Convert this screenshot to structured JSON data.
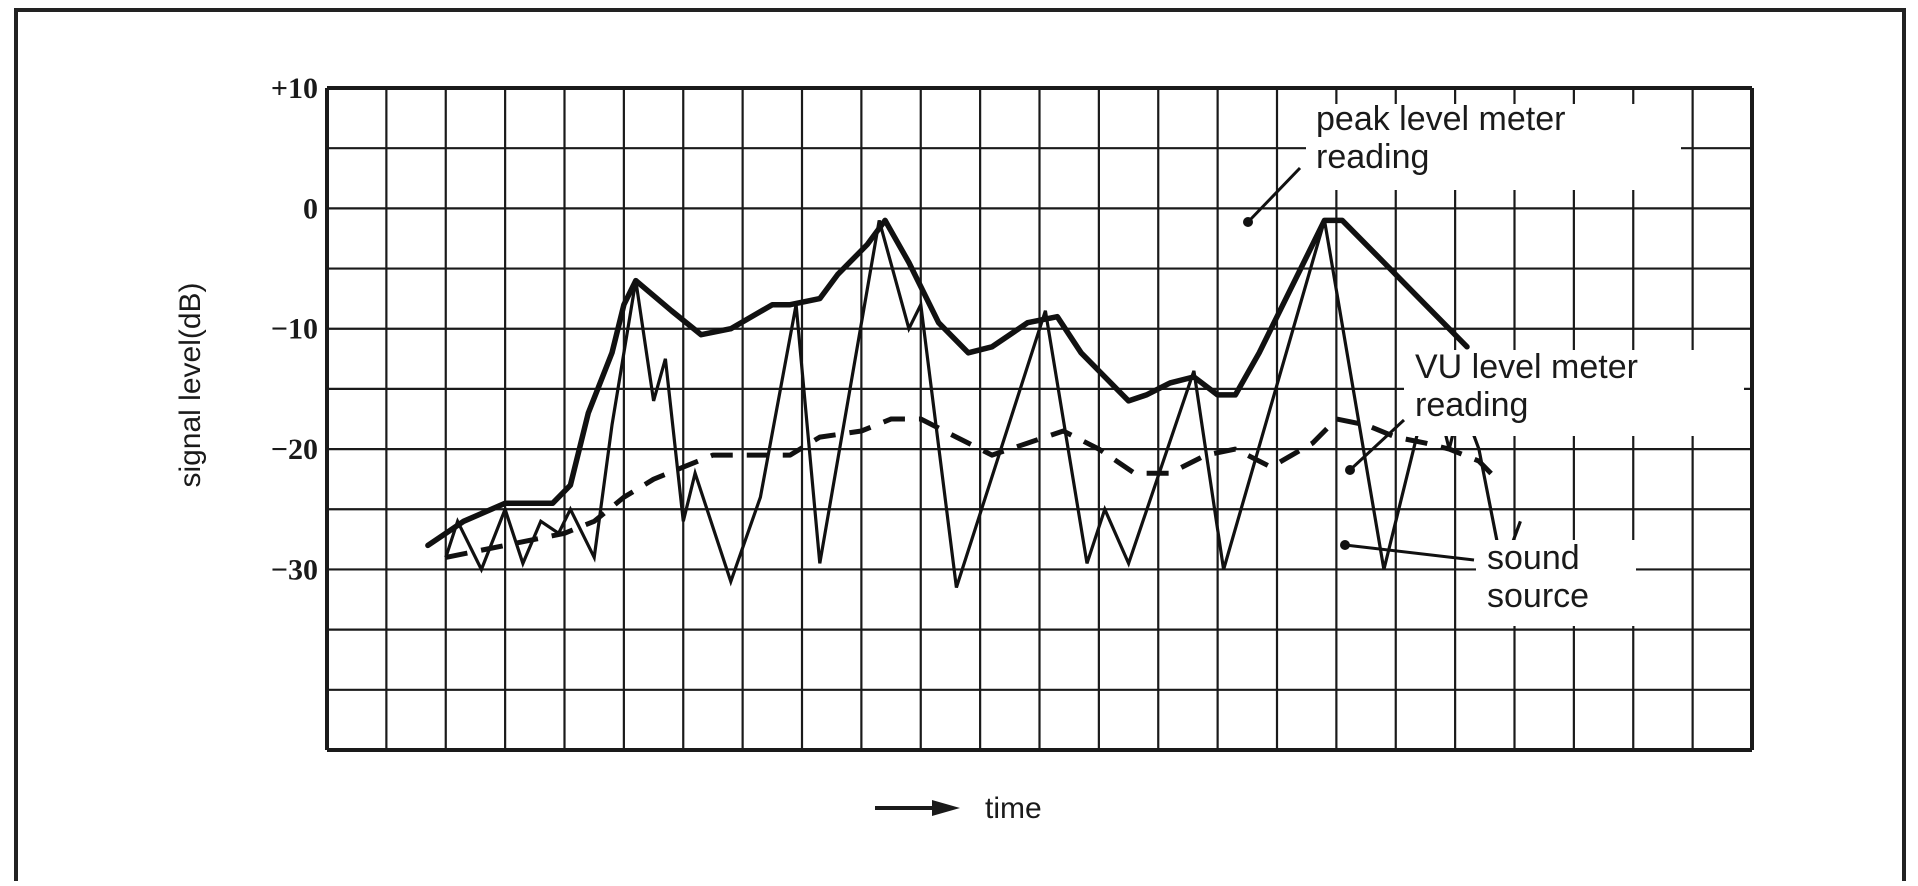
{
  "chart_data": {
    "type": "line",
    "title": "",
    "xlabel": "time",
    "ylabel": "signal level(dB)",
    "ylim": [
      -45,
      10
    ],
    "xlim": [
      0,
      24
    ],
    "y_ticks": [
      {
        "value": 10,
        "label": "+10"
      },
      {
        "value": 0,
        "label": "0"
      },
      {
        "value": -10,
        "label": "−10"
      },
      {
        "value": -20,
        "label": "−20"
      },
      {
        "value": -30,
        "label": "−30"
      }
    ],
    "grid": true,
    "series": [
      {
        "name": "peak level meter reading",
        "style": "solid-bold",
        "points": [
          {
            "x": 1.7,
            "y": -28
          },
          {
            "x": 2.3,
            "y": -26
          },
          {
            "x": 3.0,
            "y": -24.5
          },
          {
            "x": 3.8,
            "y": -24.5
          },
          {
            "x": 4.1,
            "y": -23
          },
          {
            "x": 4.4,
            "y": -17
          },
          {
            "x": 4.8,
            "y": -12
          },
          {
            "x": 5.0,
            "y": -8
          },
          {
            "x": 5.2,
            "y": -6
          },
          {
            "x": 5.8,
            "y": -8.5
          },
          {
            "x": 6.3,
            "y": -10.5
          },
          {
            "x": 6.8,
            "y": -10
          },
          {
            "x": 7.5,
            "y": -8
          },
          {
            "x": 7.8,
            "y": -8
          },
          {
            "x": 8.3,
            "y": -7.5
          },
          {
            "x": 8.6,
            "y": -5.5
          },
          {
            "x": 9.1,
            "y": -3
          },
          {
            "x": 9.4,
            "y": -1
          },
          {
            "x": 9.8,
            "y": -4.5
          },
          {
            "x": 10.3,
            "y": -9.5
          },
          {
            "x": 10.8,
            "y": -12
          },
          {
            "x": 11.2,
            "y": -11.5
          },
          {
            "x": 11.8,
            "y": -9.5
          },
          {
            "x": 12.3,
            "y": -9
          },
          {
            "x": 12.7,
            "y": -12
          },
          {
            "x": 13.3,
            "y": -15
          },
          {
            "x": 13.5,
            "y": -16
          },
          {
            "x": 13.8,
            "y": -15.5
          },
          {
            "x": 14.2,
            "y": -14.5
          },
          {
            "x": 14.6,
            "y": -14
          },
          {
            "x": 15.0,
            "y": -15.5
          },
          {
            "x": 15.3,
            "y": -15.5
          },
          {
            "x": 15.7,
            "y": -12
          },
          {
            "x": 16.0,
            "y": -9
          },
          {
            "x": 16.5,
            "y": -4
          },
          {
            "x": 16.8,
            "y": -1
          },
          {
            "x": 17.1,
            "y": -1
          },
          {
            "x": 17.8,
            "y": -4.5
          },
          {
            "x": 18.5,
            "y": -8
          },
          {
            "x": 19.2,
            "y": -11.5
          }
        ]
      },
      {
        "name": "VU level meter reading",
        "style": "dashed",
        "points": [
          {
            "x": 2.0,
            "y": -29
          },
          {
            "x": 3.0,
            "y": -28
          },
          {
            "x": 4.0,
            "y": -27
          },
          {
            "x": 4.5,
            "y": -26
          },
          {
            "x": 5.0,
            "y": -24
          },
          {
            "x": 5.5,
            "y": -22.5
          },
          {
            "x": 6.0,
            "y": -21.5
          },
          {
            "x": 6.5,
            "y": -20.5
          },
          {
            "x": 7.3,
            "y": -20.5
          },
          {
            "x": 7.8,
            "y": -20.5
          },
          {
            "x": 8.3,
            "y": -19
          },
          {
            "x": 9.0,
            "y": -18.5
          },
          {
            "x": 9.5,
            "y": -17.5
          },
          {
            "x": 10.0,
            "y": -17.5
          },
          {
            "x": 10.6,
            "y": -19
          },
          {
            "x": 11.2,
            "y": -20.5
          },
          {
            "x": 11.8,
            "y": -19.5
          },
          {
            "x": 12.4,
            "y": -18.5
          },
          {
            "x": 13.0,
            "y": -20
          },
          {
            "x": 13.6,
            "y": -22
          },
          {
            "x": 14.2,
            "y": -22
          },
          {
            "x": 14.8,
            "y": -20.5
          },
          {
            "x": 15.3,
            "y": -20
          },
          {
            "x": 15.9,
            "y": -21.5
          },
          {
            "x": 16.6,
            "y": -19.5
          },
          {
            "x": 17.0,
            "y": -17.5
          },
          {
            "x": 17.5,
            "y": -18
          },
          {
            "x": 18.0,
            "y": -19
          },
          {
            "x": 18.5,
            "y": -19.5
          },
          {
            "x": 18.9,
            "y": -20
          },
          {
            "x": 19.4,
            "y": -21
          },
          {
            "x": 19.7,
            "y": -22.5
          }
        ]
      },
      {
        "name": "sound source",
        "style": "solid-thin",
        "points": [
          {
            "x": 2.0,
            "y": -29
          },
          {
            "x": 2.2,
            "y": -26
          },
          {
            "x": 2.6,
            "y": -30
          },
          {
            "x": 3.0,
            "y": -25
          },
          {
            "x": 3.3,
            "y": -29.5
          },
          {
            "x": 3.6,
            "y": -26
          },
          {
            "x": 3.9,
            "y": -27
          },
          {
            "x": 4.1,
            "y": -25
          },
          {
            "x": 4.3,
            "y": -27
          },
          {
            "x": 4.5,
            "y": -29
          },
          {
            "x": 4.8,
            "y": -18
          },
          {
            "x": 5.0,
            "y": -12
          },
          {
            "x": 5.2,
            "y": -6
          },
          {
            "x": 5.5,
            "y": -16
          },
          {
            "x": 5.7,
            "y": -12.5
          },
          {
            "x": 6.0,
            "y": -26
          },
          {
            "x": 6.2,
            "y": -22
          },
          {
            "x": 6.8,
            "y": -31
          },
          {
            "x": 7.3,
            "y": -24
          },
          {
            "x": 7.9,
            "y": -8
          },
          {
            "x": 8.3,
            "y": -29.5
          },
          {
            "x": 9.3,
            "y": -1
          },
          {
            "x": 9.8,
            "y": -10
          },
          {
            "x": 10.0,
            "y": -8
          },
          {
            "x": 10.6,
            "y": -31.5
          },
          {
            "x": 12.1,
            "y": -8.5
          },
          {
            "x": 12.8,
            "y": -29.5
          },
          {
            "x": 13.1,
            "y": -25
          },
          {
            "x": 13.5,
            "y": -29.5
          },
          {
            "x": 14.6,
            "y": -13.5
          },
          {
            "x": 15.1,
            "y": -30
          },
          {
            "x": 16.8,
            "y": -1
          },
          {
            "x": 17.8,
            "y": -30
          },
          {
            "x": 18.6,
            "y": -14
          },
          {
            "x": 18.9,
            "y": -20
          },
          {
            "x": 19.1,
            "y": -16
          },
          {
            "x": 19.4,
            "y": -20
          },
          {
            "x": 19.8,
            "y": -30
          },
          {
            "x": 20.1,
            "y": -26
          }
        ]
      }
    ],
    "annotations": [
      {
        "key": "peak",
        "lines": [
          "peak  level  meter",
          "reading"
        ]
      },
      {
        "key": "vu",
        "lines": [
          "VU  level  meter",
          "reading"
        ]
      },
      {
        "key": "source",
        "lines": [
          "sound",
          "source"
        ]
      }
    ]
  }
}
